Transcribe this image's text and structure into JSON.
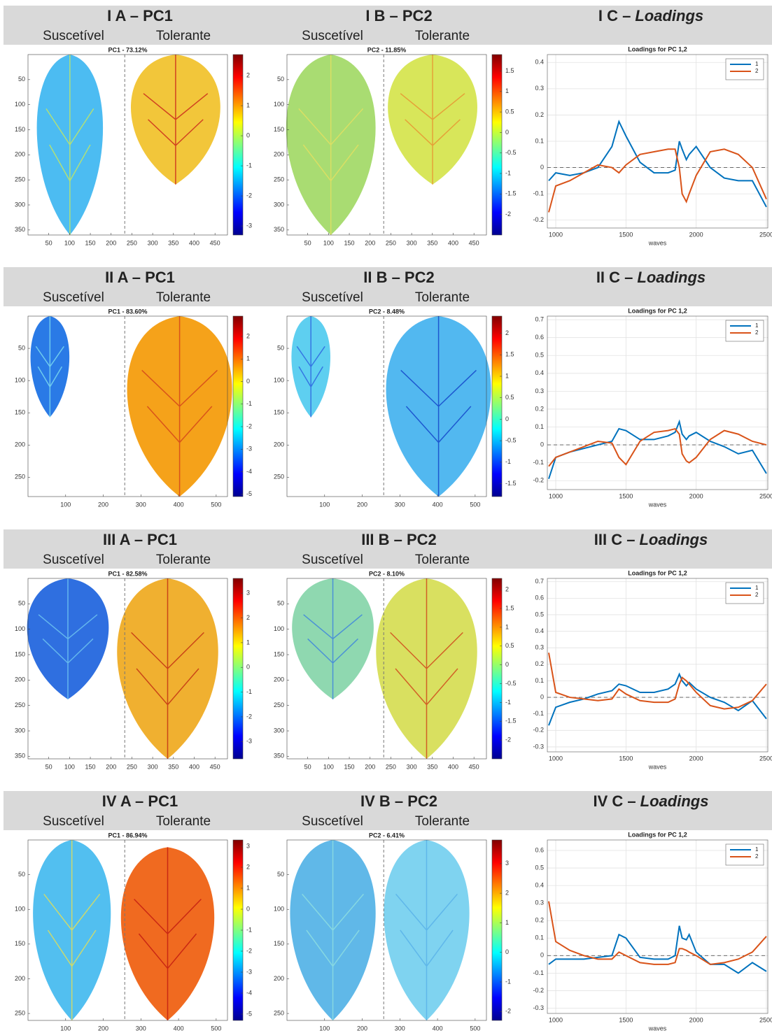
{
  "chart_data": [
    {
      "type": "heatmap",
      "title": "I A – PC1",
      "labels": [
        "Suscetível",
        "Tolerante"
      ],
      "plot_title": "PC1 - 73.12%",
      "xlim": [
        0,
        480
      ],
      "xticks": [
        50,
        100,
        150,
        200,
        250,
        300,
        350,
        400,
        450
      ],
      "ylim": [
        0,
        360
      ],
      "yticks": [
        50,
        100,
        150,
        200,
        250,
        300,
        350
      ],
      "clim": [
        -3.3,
        2.7
      ],
      "cticks": [
        2,
        1,
        0,
        -1,
        -2,
        -3
      ]
    },
    {
      "type": "heatmap",
      "title": "I B – PC2",
      "labels": [
        "Suscetível",
        "Tolerante"
      ],
      "plot_title": "PC2 - 11.85%",
      "xlim": [
        0,
        480
      ],
      "xticks": [
        50,
        100,
        150,
        200,
        250,
        300,
        350,
        400,
        450
      ],
      "ylim": [
        0,
        360
      ],
      "yticks": [
        50,
        100,
        150,
        200,
        250,
        300,
        350
      ],
      "clim": [
        -2.5,
        1.9
      ],
      "cticks": [
        1.5,
        1,
        0.5,
        0,
        -0.5,
        -1,
        -1.5,
        -2
      ]
    },
    {
      "type": "line",
      "title": "I C –",
      "title_emphasis": "Loadings",
      "plot_title": "Loadings for PC 1,2",
      "xlabel": "waves",
      "x": [
        950,
        1000,
        1100,
        1200,
        1300,
        1400,
        1450,
        1500,
        1600,
        1700,
        1800,
        1850,
        1880,
        1900,
        1930,
        1950,
        2000,
        2100,
        2200,
        2300,
        2400,
        2500
      ],
      "xlim": [
        940,
        2510
      ],
      "xticks": [
        1000,
        1500,
        2000,
        2500
      ],
      "ylim": [
        -0.23,
        0.43
      ],
      "yticks": [
        -0.2,
        -0.1,
        0,
        0.1,
        0.2,
        0.3,
        0.4
      ],
      "hline": 0,
      "grid": true,
      "legend": "upper right",
      "series": [
        {
          "name": "1",
          "color": "#0072bd",
          "values": [
            -0.05,
            -0.02,
            -0.03,
            -0.02,
            0.0,
            0.08,
            0.175,
            0.12,
            0.02,
            -0.02,
            -0.02,
            -0.01,
            0.1,
            0.07,
            0.03,
            0.05,
            0.08,
            0.0,
            -0.04,
            -0.05,
            -0.05,
            -0.15
          ]
        },
        {
          "name": "2",
          "color": "#d95319",
          "values": [
            -0.17,
            -0.07,
            -0.05,
            -0.02,
            0.01,
            0.0,
            -0.02,
            0.01,
            0.05,
            0.06,
            0.07,
            0.07,
            0.0,
            -0.1,
            -0.13,
            -0.1,
            -0.03,
            0.06,
            0.07,
            0.05,
            0.0,
            -0.12
          ]
        }
      ]
    },
    {
      "type": "heatmap",
      "title": "II A – PC1",
      "labels": [
        "Suscetível",
        "Tolerante"
      ],
      "plot_title": "PC1 - 83.60%",
      "xlim": [
        0,
        530
      ],
      "xticks": [
        100,
        200,
        300,
        400,
        500
      ],
      "ylim": [
        0,
        280
      ],
      "yticks": [
        50,
        100,
        150,
        200,
        250
      ],
      "clim": [
        -5.1,
        2.9
      ],
      "cticks": [
        2,
        1,
        0,
        -1,
        -2,
        -3,
        -4,
        -5
      ]
    },
    {
      "type": "heatmap",
      "title": "II B – PC2",
      "labels": [
        "Suscetível",
        "Tolerante"
      ],
      "plot_title": "PC2 - 8.48%",
      "xlim": [
        0,
        530
      ],
      "xticks": [
        100,
        200,
        300,
        400,
        500
      ],
      "ylim": [
        0,
        280
      ],
      "yticks": [
        50,
        100,
        150,
        200,
        250
      ],
      "clim": [
        -1.8,
        2.4
      ],
      "cticks": [
        2,
        1.5,
        1,
        0.5,
        0,
        -0.5,
        -1,
        -1.5
      ]
    },
    {
      "type": "line",
      "title": "II C –",
      "title_emphasis": "Loadings",
      "plot_title": "Loadings for PC 1,2",
      "xlabel": "waves",
      "x": [
        950,
        1000,
        1100,
        1200,
        1300,
        1400,
        1450,
        1500,
        1600,
        1700,
        1800,
        1850,
        1880,
        1900,
        1930,
        1950,
        2000,
        2100,
        2200,
        2300,
        2400,
        2500
      ],
      "xlim": [
        940,
        2510
      ],
      "xticks": [
        1000,
        1500,
        2000,
        2500
      ],
      "ylim": [
        -0.25,
        0.72
      ],
      "yticks": [
        -0.2,
        -0.1,
        0,
        0.1,
        0.2,
        0.3,
        0.4,
        0.5,
        0.6,
        0.7
      ],
      "hline": 0,
      "grid": true,
      "legend": "upper right",
      "series": [
        {
          "name": "1",
          "color": "#0072bd",
          "values": [
            -0.19,
            -0.07,
            -0.04,
            -0.02,
            0.0,
            0.02,
            0.09,
            0.08,
            0.03,
            0.03,
            0.05,
            0.07,
            0.13,
            0.06,
            0.03,
            0.05,
            0.07,
            0.02,
            -0.01,
            -0.05,
            -0.03,
            -0.16
          ]
        },
        {
          "name": "2",
          "color": "#d95319",
          "values": [
            -0.12,
            -0.07,
            -0.04,
            -0.01,
            0.02,
            0.01,
            -0.07,
            -0.11,
            0.02,
            0.07,
            0.08,
            0.09,
            0.06,
            -0.05,
            -0.09,
            -0.1,
            -0.07,
            0.03,
            0.08,
            0.06,
            0.02,
            0.0
          ]
        }
      ]
    },
    {
      "type": "heatmap",
      "title": "III A – PC1",
      "labels": [
        "Suscetível",
        "Tolerante"
      ],
      "plot_title": "PC1 - 82.58%",
      "xlim": [
        0,
        480
      ],
      "xticks": [
        50,
        100,
        150,
        200,
        250,
        300,
        350,
        400,
        450
      ],
      "ylim": [
        0,
        355
      ],
      "yticks": [
        50,
        100,
        150,
        200,
        250,
        300,
        350
      ],
      "clim": [
        -3.7,
        3.6
      ],
      "cticks": [
        3,
        2,
        1,
        0,
        -1,
        -2,
        -3
      ]
    },
    {
      "type": "heatmap",
      "title": "III B – PC2",
      "labels": [
        "Suscetível",
        "Tolerante"
      ],
      "plot_title": "PC2 - 8.10%",
      "xlim": [
        0,
        480
      ],
      "xticks": [
        50,
        100,
        150,
        200,
        250,
        300,
        350,
        400,
        450
      ],
      "ylim": [
        0,
        355
      ],
      "yticks": [
        50,
        100,
        150,
        200,
        250,
        300,
        350
      ],
      "clim": [
        -2.5,
        2.3
      ],
      "cticks": [
        2,
        1.5,
        1,
        0.5,
        0,
        -0.5,
        -1,
        -1.5,
        -2
      ]
    },
    {
      "type": "line",
      "title": "III C –",
      "title_emphasis": "Loadings",
      "plot_title": "Loadings for PC 1,2",
      "xlabel": "waves",
      "x": [
        950,
        1000,
        1100,
        1200,
        1300,
        1400,
        1450,
        1500,
        1600,
        1700,
        1800,
        1850,
        1880,
        1900,
        1930,
        1950,
        2000,
        2100,
        2200,
        2300,
        2400,
        2500
      ],
      "xlim": [
        940,
        2510
      ],
      "xticks": [
        1000,
        1500,
        2000,
        2500
      ],
      "ylim": [
        -0.33,
        0.72
      ],
      "yticks": [
        -0.3,
        -0.2,
        -0.1,
        0,
        0.1,
        0.2,
        0.3,
        0.4,
        0.5,
        0.6,
        0.7
      ],
      "hline": 0,
      "grid": true,
      "legend": "upper right",
      "series": [
        {
          "name": "1",
          "color": "#0072bd",
          "values": [
            -0.17,
            -0.06,
            -0.03,
            -0.01,
            0.02,
            0.04,
            0.08,
            0.07,
            0.03,
            0.03,
            0.05,
            0.08,
            0.14,
            0.1,
            0.07,
            0.09,
            0.05,
            0.0,
            -0.03,
            -0.08,
            -0.02,
            -0.13
          ]
        },
        {
          "name": "2",
          "color": "#d95319",
          "values": [
            0.27,
            0.03,
            0.0,
            -0.01,
            -0.02,
            -0.01,
            0.05,
            0.02,
            -0.02,
            -0.03,
            -0.03,
            -0.01,
            0.08,
            0.12,
            0.1,
            0.08,
            0.03,
            -0.05,
            -0.07,
            -0.06,
            -0.02,
            0.08
          ]
        }
      ]
    },
    {
      "type": "heatmap",
      "title": "IV A – PC1",
      "labels": [
        "Suscetível",
        "Tolerante"
      ],
      "plot_title": "PC1 - 86.94%",
      "xlim": [
        0,
        530
      ],
      "xticks": [
        100,
        200,
        300,
        400,
        500
      ],
      "ylim": [
        0,
        260
      ],
      "yticks": [
        50,
        100,
        150,
        200,
        250
      ],
      "clim": [
        -5.3,
        3.3
      ],
      "cticks": [
        3,
        2,
        1,
        0,
        -1,
        -2,
        -3,
        -4,
        -5
      ]
    },
    {
      "type": "heatmap",
      "title": "IV B – PC2",
      "labels": [
        "Suscetível",
        "Tolerante"
      ],
      "plot_title": "PC2 - 6.41%",
      "xlim": [
        0,
        530
      ],
      "xticks": [
        100,
        200,
        300,
        400,
        500
      ],
      "ylim": [
        0,
        260
      ],
      "yticks": [
        50,
        100,
        150,
        200,
        250
      ],
      "clim": [
        -2.3,
        3.8
      ],
      "cticks": [
        3,
        2,
        1,
        0,
        -1,
        -2
      ]
    },
    {
      "type": "line",
      "title": "IV C –",
      "title_emphasis": "Loadings",
      "plot_title": "Loadings for PC 1,2",
      "xlabel": "waves",
      "x": [
        950,
        1000,
        1100,
        1200,
        1300,
        1400,
        1450,
        1500,
        1600,
        1700,
        1800,
        1850,
        1880,
        1900,
        1930,
        1950,
        2000,
        2100,
        2200,
        2300,
        2400,
        2500
      ],
      "xlim": [
        940,
        2510
      ],
      "xticks": [
        1000,
        1500,
        2000,
        2500
      ],
      "ylim": [
        -0.33,
        0.66
      ],
      "yticks": [
        -0.3,
        -0.2,
        -0.1,
        0,
        0.1,
        0.2,
        0.3,
        0.4,
        0.5,
        0.6
      ],
      "hline": 0,
      "grid": true,
      "legend": "upper right",
      "series": [
        {
          "name": "1",
          "color": "#0072bd",
          "values": [
            -0.05,
            -0.02,
            -0.02,
            -0.02,
            -0.01,
            0.0,
            0.12,
            0.1,
            -0.01,
            -0.02,
            -0.02,
            0.0,
            0.17,
            0.1,
            0.09,
            0.12,
            0.02,
            -0.05,
            -0.05,
            -0.1,
            -0.04,
            -0.09
          ]
        },
        {
          "name": "2",
          "color": "#d95319",
          "values": [
            0.31,
            0.08,
            0.03,
            0.0,
            -0.02,
            -0.02,
            0.02,
            0.0,
            -0.04,
            -0.05,
            -0.05,
            -0.04,
            0.04,
            0.04,
            0.03,
            0.02,
            0.0,
            -0.05,
            -0.04,
            -0.02,
            0.02,
            0.11
          ]
        }
      ]
    }
  ]
}
